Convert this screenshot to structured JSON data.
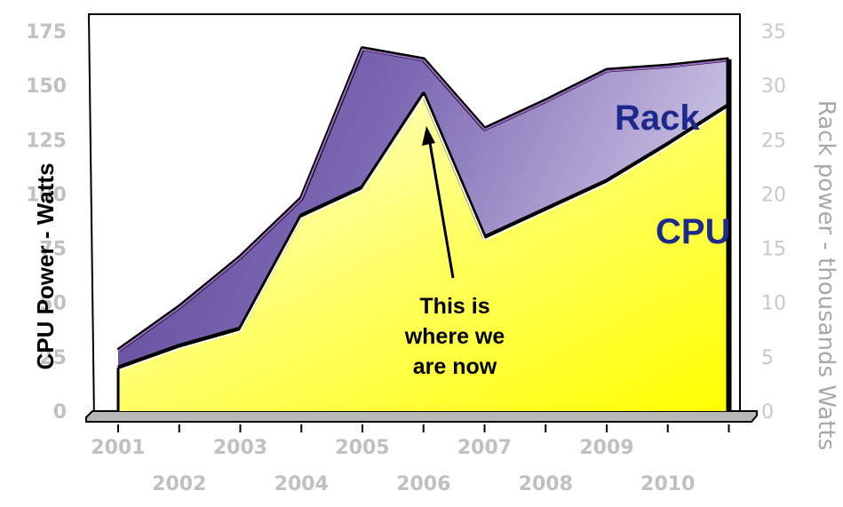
{
  "chart_data": {
    "type": "area",
    "x": [
      "2001",
      "2002",
      "2003",
      "2004",
      "2005",
      "2006",
      "2007",
      "2008",
      "2009",
      "2010",
      "2011"
    ],
    "x_tick_labels": [
      "2001",
      "2002",
      "2003",
      "2004",
      "2005",
      "2006",
      "2007",
      "2008",
      "2009",
      "2010"
    ],
    "series": [
      {
        "name": "CPU",
        "axis": "left",
        "color": "#ffff40",
        "values": [
          20,
          30,
          38,
          90,
          103,
          146,
          80,
          93,
          106,
          123,
          141
        ]
      },
      {
        "name": "Rack",
        "axis": "right",
        "color": "#7a64ae",
        "values": [
          5.6,
          9.6,
          14.2,
          19.6,
          33.4,
          32.4,
          26,
          28.6,
          31.4,
          31.8,
          32.4
        ]
      }
    ],
    "ylabel": "CPU Power - Watts",
    "ylabel_right": "Rack power - thousands Watts",
    "ylim": [
      0,
      175
    ],
    "yticks": [
      "0",
      "25",
      "50",
      "75",
      "100",
      "125",
      "150",
      "175"
    ],
    "ylim_right": [
      0,
      35
    ],
    "yticks_right": [
      "0",
      "5",
      "10",
      "15",
      "20",
      "25",
      "30",
      "35"
    ],
    "annotation": {
      "lines": [
        "This is",
        "where we",
        "are now"
      ],
      "points_to": "2006"
    },
    "grid": false,
    "legend": "none"
  }
}
